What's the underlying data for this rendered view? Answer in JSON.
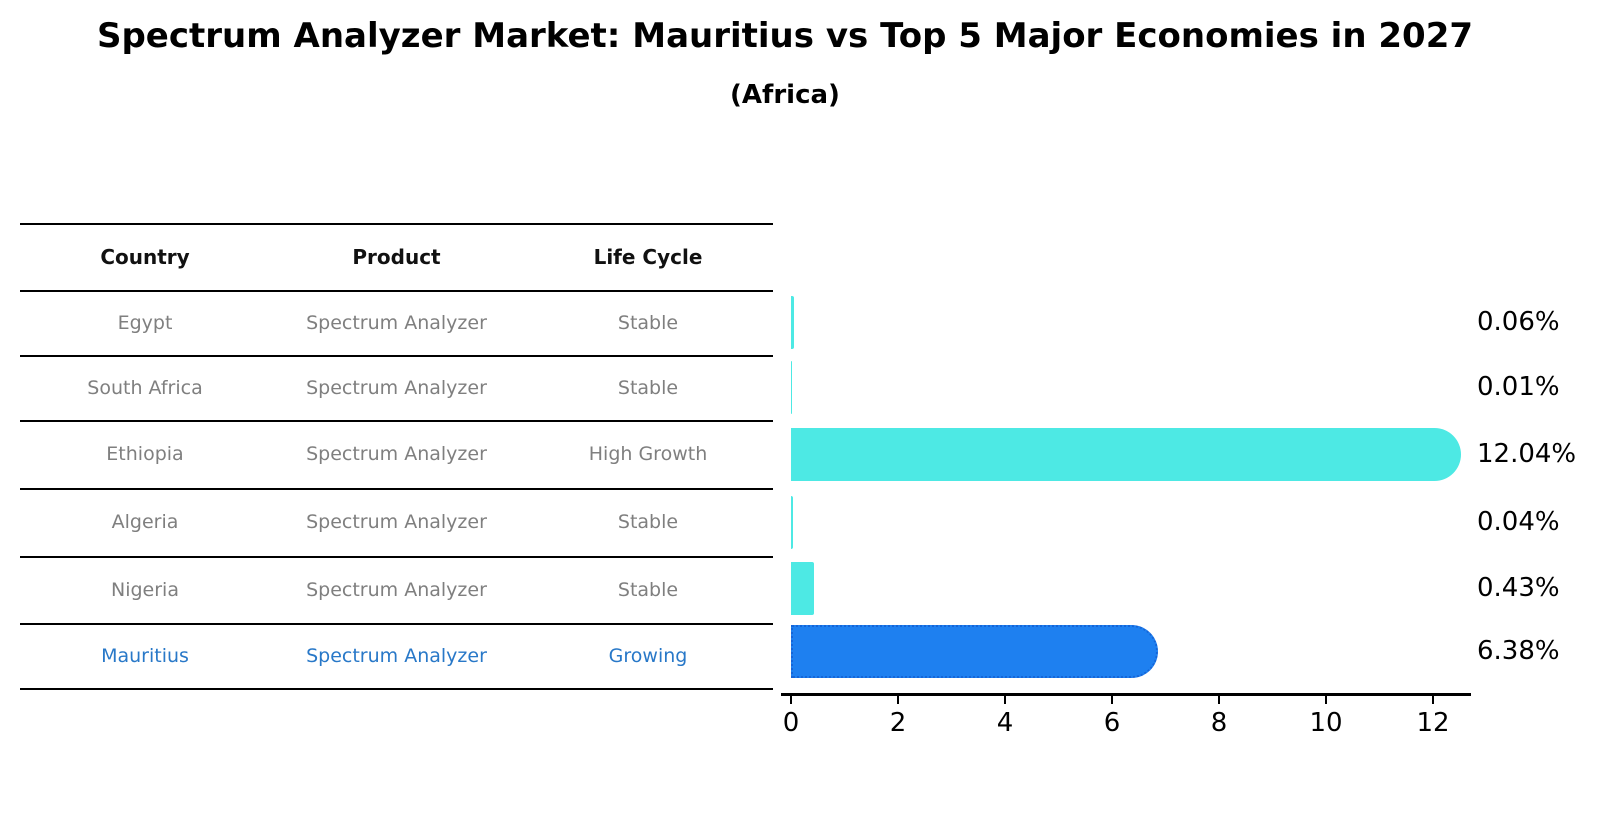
{
  "header": {
    "title": "Spectrum Analyzer Market: Mauritius vs Top 5 Major Economies in 2027",
    "subtitle": "(Africa)"
  },
  "table": {
    "columns": [
      "Country",
      "Product",
      "Life Cycle"
    ],
    "rows": [
      {
        "country": "Egypt",
        "product": "Spectrum Analyzer",
        "life_cycle": "Stable"
      },
      {
        "country": "South Africa",
        "product": "Spectrum Analyzer",
        "life_cycle": "Stable"
      },
      {
        "country": "Ethiopia",
        "product": "Spectrum Analyzer",
        "life_cycle": "High Growth"
      },
      {
        "country": "Algeria",
        "product": "Spectrum Analyzer",
        "life_cycle": "Stable"
      },
      {
        "country": "Nigeria",
        "product": "Spectrum Analyzer",
        "life_cycle": "Stable"
      },
      {
        "country": "Mauritius",
        "product": "Spectrum Analyzer",
        "life_cycle": "Growing"
      }
    ],
    "highlight_row": "Mauritius"
  },
  "chart_data": {
    "type": "bar",
    "orientation": "horizontal",
    "title": "Spectrum Analyzer Market: Mauritius vs Top 5 Major Economies in 2027 (Africa)",
    "categories": [
      "Egypt",
      "South Africa",
      "Ethiopia",
      "Algeria",
      "Nigeria",
      "Mauritius"
    ],
    "values": [
      0.06,
      0.01,
      12.04,
      0.04,
      0.43,
      6.38
    ],
    "value_labels": [
      "0.06%",
      "0.01%",
      "12.04%",
      "0.04%",
      "0.43%",
      "6.38%"
    ],
    "unit": "percent",
    "xlabel": "",
    "ylabel": "",
    "xlim": [
      0,
      12.7
    ],
    "xticks": [
      "0",
      "2",
      "4",
      "6",
      "8",
      "10",
      "12"
    ],
    "grid": false,
    "legend": null,
    "highlight_index": 5,
    "colors": {
      "bar": "#4DE9E4",
      "highlight_bar": "#1E80F0",
      "highlight_bar_border": "#1565D8",
      "highlight_text": "#2878C8",
      "table_text": "#7F7F7F",
      "axis": "#000000"
    }
  }
}
